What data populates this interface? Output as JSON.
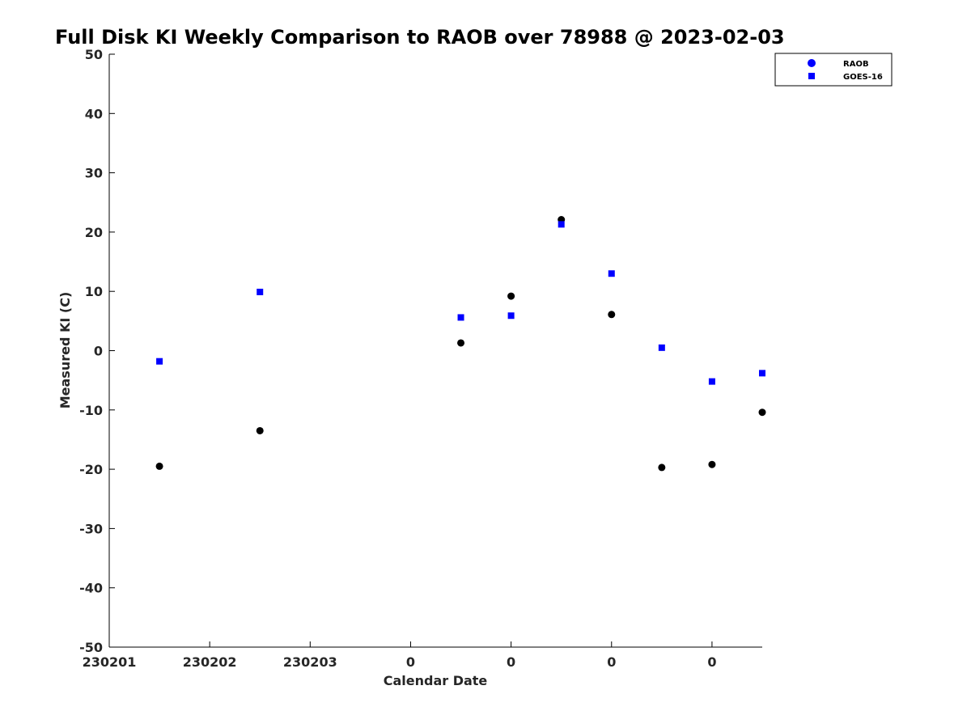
{
  "chart_data": {
    "type": "scatter",
    "title": "Full Disk KI Weekly Comparison to RAOB over 78988 @ 2023-02-03",
    "xlabel": "Calendar Date",
    "ylabel": "Measured KI (C)",
    "xlim": [
      0,
      6.5
    ],
    "ylim": [
      -50,
      50
    ],
    "x_ticks": [
      0,
      1,
      2,
      3,
      4,
      5,
      6
    ],
    "x_tick_labels": [
      "230201",
      "230202",
      "230203",
      "0",
      "0",
      "0",
      "0"
    ],
    "y_ticks": [
      -50,
      -40,
      -30,
      -20,
      -10,
      0,
      10,
      20,
      30,
      40,
      50
    ],
    "legend_position": "top-right",
    "series": [
      {
        "name": "RAOB",
        "marker": "circle",
        "color": "#000000",
        "legend_color": "#0000ff",
        "x": [
          0.5,
          1.5,
          3.5,
          4.0,
          4.5,
          5.0,
          5.5,
          6.0,
          6.5
        ],
        "y": [
          -19.5,
          -13.5,
          1.3,
          9.2,
          22.1,
          6.1,
          -19.7,
          -19.2,
          -10.4
        ]
      },
      {
        "name": "GOES-16",
        "marker": "square",
        "color": "#0000ff",
        "legend_color": "#0000ff",
        "x": [
          0.5,
          1.5,
          3.5,
          4.0,
          4.5,
          5.0,
          5.5,
          6.0,
          6.5
        ],
        "y": [
          -1.8,
          9.9,
          5.6,
          5.9,
          21.3,
          13.0,
          0.5,
          -5.2,
          -3.8
        ]
      }
    ]
  }
}
